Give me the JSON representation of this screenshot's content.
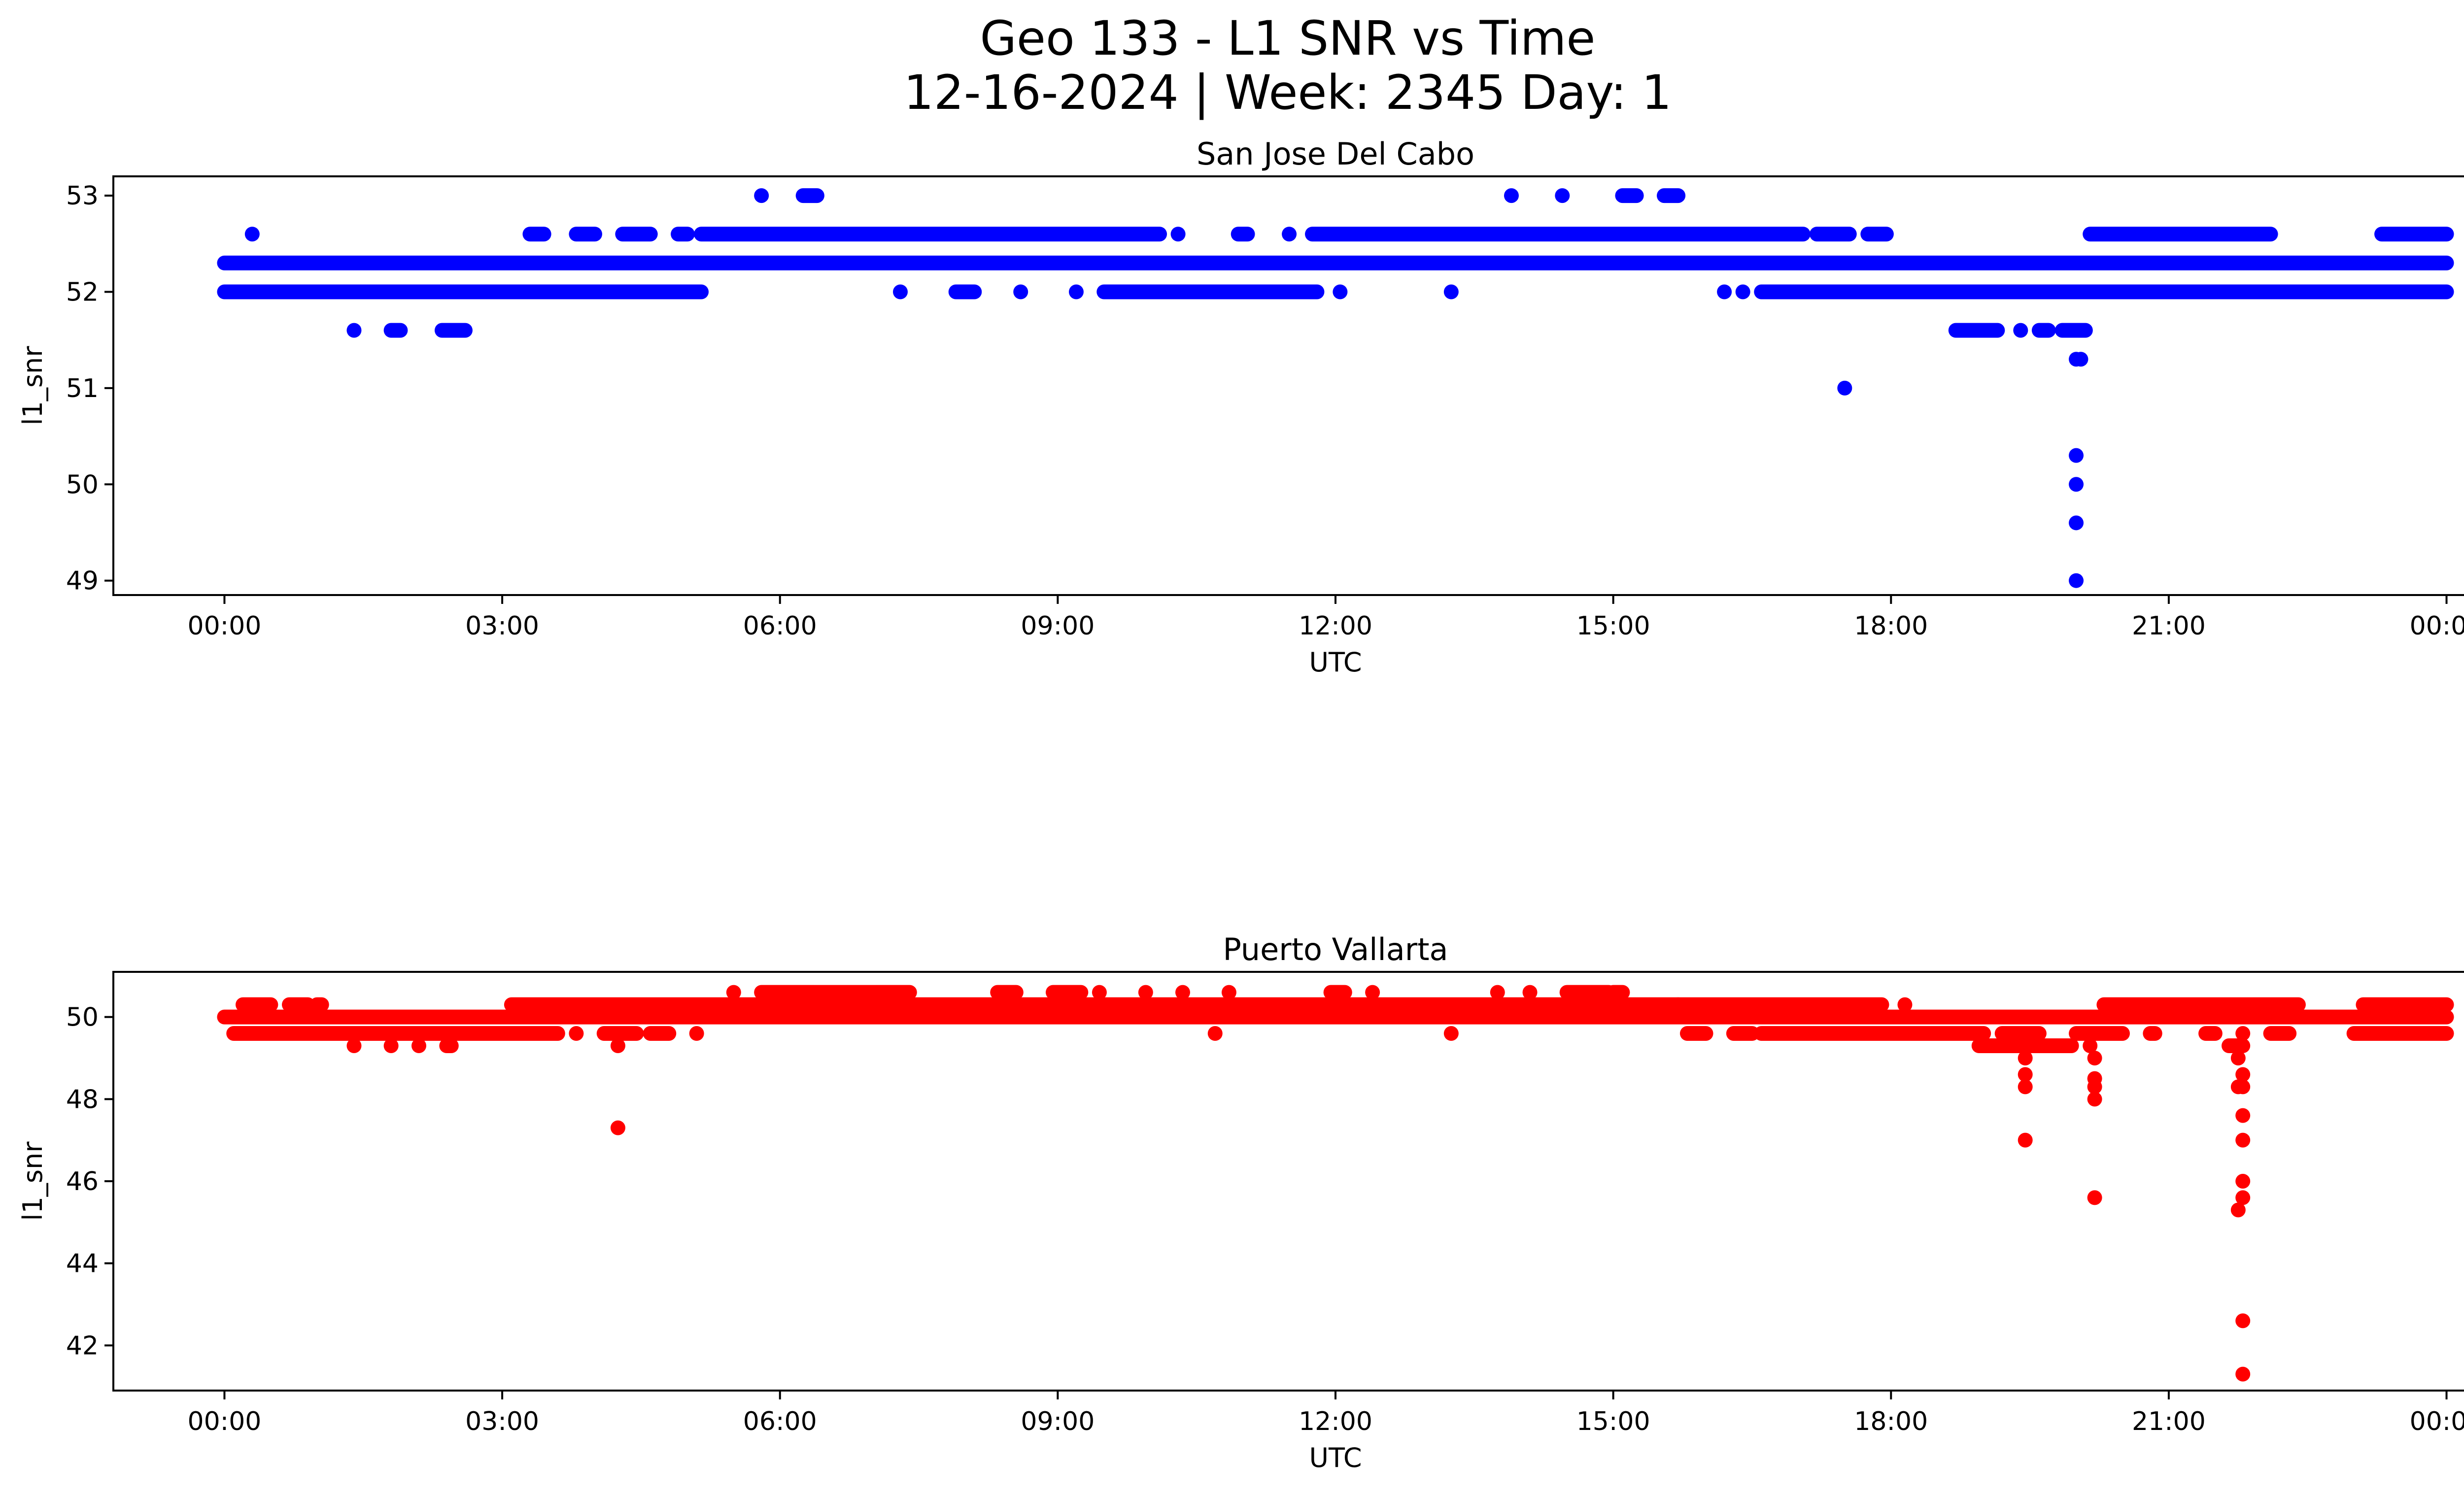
{
  "figure": {
    "title_line1": "Geo 133 - L1 SNR vs Time",
    "title_line2": "12-16-2024 | Week: 2345 Day: 1"
  },
  "chart_data": [
    {
      "type": "scatter",
      "title": "San Jose Del Cabo",
      "xlabel": "UTC",
      "ylabel": "l1_snr",
      "color": "#0000ff",
      "x_unit": "hours UTC",
      "xlim": [
        -1.2,
        25.2
      ],
      "ylim": [
        48.85,
        53.2
      ],
      "x_ticks": [
        0,
        3,
        6,
        9,
        12,
        15,
        18,
        21,
        24
      ],
      "x_tick_labels": [
        "00:00",
        "03:00",
        "06:00",
        "09:00",
        "12:00",
        "15:00",
        "18:00",
        "21:00",
        "00:00"
      ],
      "y_ticks": [
        49,
        50,
        51,
        52,
        53
      ],
      "y_tick_labels": [
        "49",
        "50",
        "51",
        "52",
        "53"
      ],
      "bands": [
        {
          "y": 52.3,
          "segments": [
            [
              0,
              24
            ]
          ]
        },
        {
          "y": 52.0,
          "segments": [
            [
              0,
              5.15
            ],
            [
              7.3,
              7.3
            ],
            [
              7.9,
              8.1
            ],
            [
              8.6,
              8.6
            ],
            [
              9.2,
              9.2
            ],
            [
              9.5,
              11.8
            ],
            [
              12.05,
              12.05
            ],
            [
              13.25,
              13.25
            ],
            [
              16.2,
              16.2
            ],
            [
              16.4,
              16.4
            ],
            [
              16.6,
              24
            ]
          ]
        },
        {
          "y": 52.6,
          "segments": [
            [
              0.3,
              0.3
            ],
            [
              3.3,
              3.45
            ],
            [
              3.8,
              4.0
            ],
            [
              4.3,
              4.6
            ],
            [
              4.9,
              5.0
            ],
            [
              5.15,
              10.1
            ],
            [
              10.3,
              10.3
            ],
            [
              10.95,
              11.05
            ],
            [
              11.5,
              11.5
            ],
            [
              11.75,
              17.05
            ],
            [
              17.2,
              17.55
            ],
            [
              17.75,
              17.95
            ],
            [
              20.15,
              22.1
            ],
            [
              23.3,
              24
            ]
          ]
        },
        {
          "y": 53.0,
          "segments": [
            [
              5.8,
              5.8
            ],
            [
              6.25,
              6.4
            ],
            [
              13.9,
              13.9
            ],
            [
              14.45,
              14.45
            ],
            [
              15.1,
              15.25
            ],
            [
              15.55,
              15.7
            ]
          ]
        },
        {
          "y": 51.6,
          "segments": [
            [
              1.4,
              1.4
            ],
            [
              1.8,
              1.9
            ],
            [
              2.35,
              2.6
            ],
            [
              18.7,
              19.15
            ],
            [
              19.4,
              19.4
            ],
            [
              19.6,
              19.7
            ],
            [
              19.85,
              20.1
            ]
          ]
        }
      ],
      "points": [
        {
          "x": 17.5,
          "y": 51.0
        },
        {
          "x": 20.0,
          "y": 51.3
        },
        {
          "x": 20.05,
          "y": 51.3
        },
        {
          "x": 20.0,
          "y": 50.3
        },
        {
          "x": 20.0,
          "y": 50.0
        },
        {
          "x": 20.0,
          "y": 49.6
        },
        {
          "x": 20.0,
          "y": 49.0
        }
      ]
    },
    {
      "type": "scatter",
      "title": "Puerto Vallarta",
      "xlabel": "UTC",
      "ylabel": "l1_snr",
      "color": "#ff0000",
      "x_unit": "hours UTC",
      "xlim": [
        -1.2,
        25.2
      ],
      "ylim": [
        40.9,
        51.1
      ],
      "x_ticks": [
        0,
        3,
        6,
        9,
        12,
        15,
        18,
        21,
        24
      ],
      "x_tick_labels": [
        "00:00",
        "03:00",
        "06:00",
        "09:00",
        "12:00",
        "15:00",
        "18:00",
        "21:00",
        "00:00"
      ],
      "y_ticks": [
        42,
        44,
        46,
        48,
        50
      ],
      "y_tick_labels": [
        "42",
        "44",
        "46",
        "48",
        "50"
      ],
      "bands": [
        {
          "y": 50.0,
          "segments": [
            [
              0,
              24
            ]
          ]
        },
        {
          "y": 49.6,
          "segments": [
            [
              0.1,
              3.15
            ],
            [
              3.15,
              3.6
            ],
            [
              3.8,
              3.8
            ],
            [
              4.1,
              4.45
            ],
            [
              4.6,
              4.8
            ],
            [
              5.1,
              5.1
            ],
            [
              10.7,
              10.7
            ],
            [
              13.25,
              13.25
            ],
            [
              15.8,
              16.0
            ],
            [
              16.3,
              16.5
            ],
            [
              16.6,
              19.0
            ],
            [
              19.2,
              19.6
            ],
            [
              20.0,
              20.5
            ],
            [
              20.8,
              20.85
            ],
            [
              21.4,
              21.5
            ],
            [
              21.8,
              21.8
            ],
            [
              22.1,
              22.3
            ],
            [
              23.0,
              24
            ]
          ]
        },
        {
          "y": 50.3,
          "segments": [
            [
              0.2,
              0.5
            ],
            [
              0.7,
              0.9
            ],
            [
              1.0,
              1.05
            ],
            [
              3.1,
              15.7
            ],
            [
              15.7,
              17.9
            ],
            [
              18.15,
              18.15
            ],
            [
              20.3,
              22.4
            ],
            [
              23.1,
              24
            ]
          ]
        },
        {
          "y": 50.6,
          "segments": [
            [
              5.5,
              5.5
            ],
            [
              5.8,
              7.4
            ],
            [
              8.35,
              8.55
            ],
            [
              8.95,
              9.25
            ],
            [
              9.45,
              9.45
            ],
            [
              9.95,
              9.95
            ],
            [
              10.35,
              10.35
            ],
            [
              10.85,
              10.85
            ],
            [
              11.95,
              12.1
            ],
            [
              12.4,
              12.4
            ],
            [
              13.75,
              13.75
            ],
            [
              14.1,
              14.1
            ],
            [
              14.5,
              14.95
            ],
            [
              15.0,
              15.1
            ]
          ]
        },
        {
          "y": 49.3,
          "segments": [
            [
              1.4,
              1.4
            ],
            [
              1.8,
              1.8
            ],
            [
              2.1,
              2.1
            ],
            [
              2.4,
              2.45
            ],
            [
              4.25,
              4.25
            ],
            [
              18.95,
              19.95
            ],
            [
              20.15,
              20.15
            ],
            [
              21.65,
              21.8
            ]
          ]
        }
      ],
      "points": [
        {
          "x": 4.25,
          "y": 47.3
        },
        {
          "x": 19.45,
          "y": 49.0
        },
        {
          "x": 19.45,
          "y": 48.6
        },
        {
          "x": 19.45,
          "y": 48.3
        },
        {
          "x": 19.45,
          "y": 47.0
        },
        {
          "x": 20.2,
          "y": 49.0
        },
        {
          "x": 20.2,
          "y": 48.5
        },
        {
          "x": 20.2,
          "y": 48.3
        },
        {
          "x": 20.2,
          "y": 48.0
        },
        {
          "x": 20.2,
          "y": 45.6
        },
        {
          "x": 21.75,
          "y": 49.0
        },
        {
          "x": 21.8,
          "y": 48.6
        },
        {
          "x": 21.8,
          "y": 48.3
        },
        {
          "x": 21.75,
          "y": 48.3
        },
        {
          "x": 21.8,
          "y": 47.6
        },
        {
          "x": 21.8,
          "y": 47.0
        },
        {
          "x": 21.8,
          "y": 46.0
        },
        {
          "x": 21.8,
          "y": 45.6
        },
        {
          "x": 21.75,
          "y": 45.3
        },
        {
          "x": 21.8,
          "y": 42.6
        },
        {
          "x": 21.8,
          "y": 41.3
        }
      ]
    }
  ]
}
